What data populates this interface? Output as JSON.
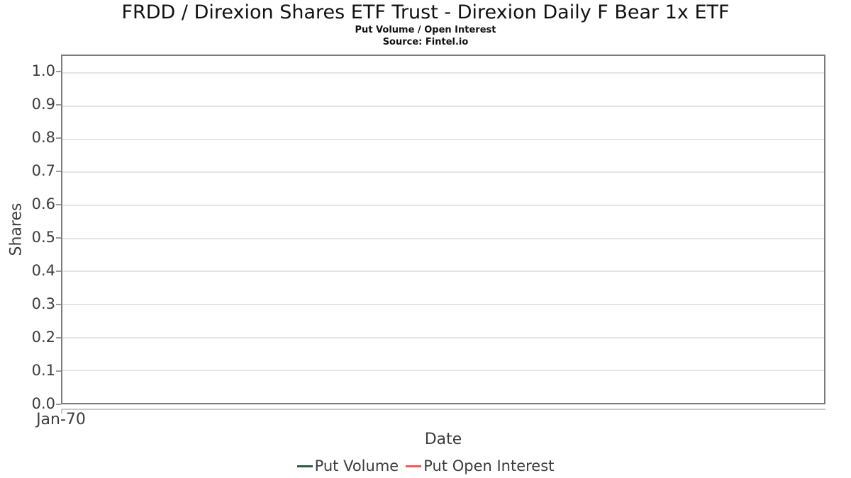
{
  "header": {
    "title": "FRDD / Direxion Shares ETF Trust - Direxion Daily F Bear 1x ETF",
    "subtitle": "Put Volume / Open Interest",
    "source": "Source: Fintel.io"
  },
  "chart_data": {
    "type": "line",
    "title": "FRDD / Direxion Shares ETF Trust - Direxion Daily F Bear 1x ETF",
    "subtitle": "Put Volume / Open Interest",
    "source": "Source: Fintel.io",
    "xlabel": "Date",
    "ylabel": "Shares",
    "xticks": [
      "Jan-70"
    ],
    "yticks": [
      0.0,
      0.1,
      0.2,
      0.3,
      0.4,
      0.5,
      0.6,
      0.7,
      0.8,
      0.9,
      1.0
    ],
    "ylim": [
      0,
      1.05
    ],
    "grid": true,
    "gridline_color": "#e5e5e5",
    "axis_border_color": "#7b7b7b",
    "axis_line_color": "#c8c8c8",
    "tick_mark_color": "#9a9a9a",
    "legend_position": "bottom",
    "series": [
      {
        "name": "Put Volume",
        "color": "#2d5a3c",
        "x": [],
        "values": []
      },
      {
        "name": "Put Open Interest",
        "color": "#f85555",
        "x": [],
        "values": []
      }
    ]
  }
}
